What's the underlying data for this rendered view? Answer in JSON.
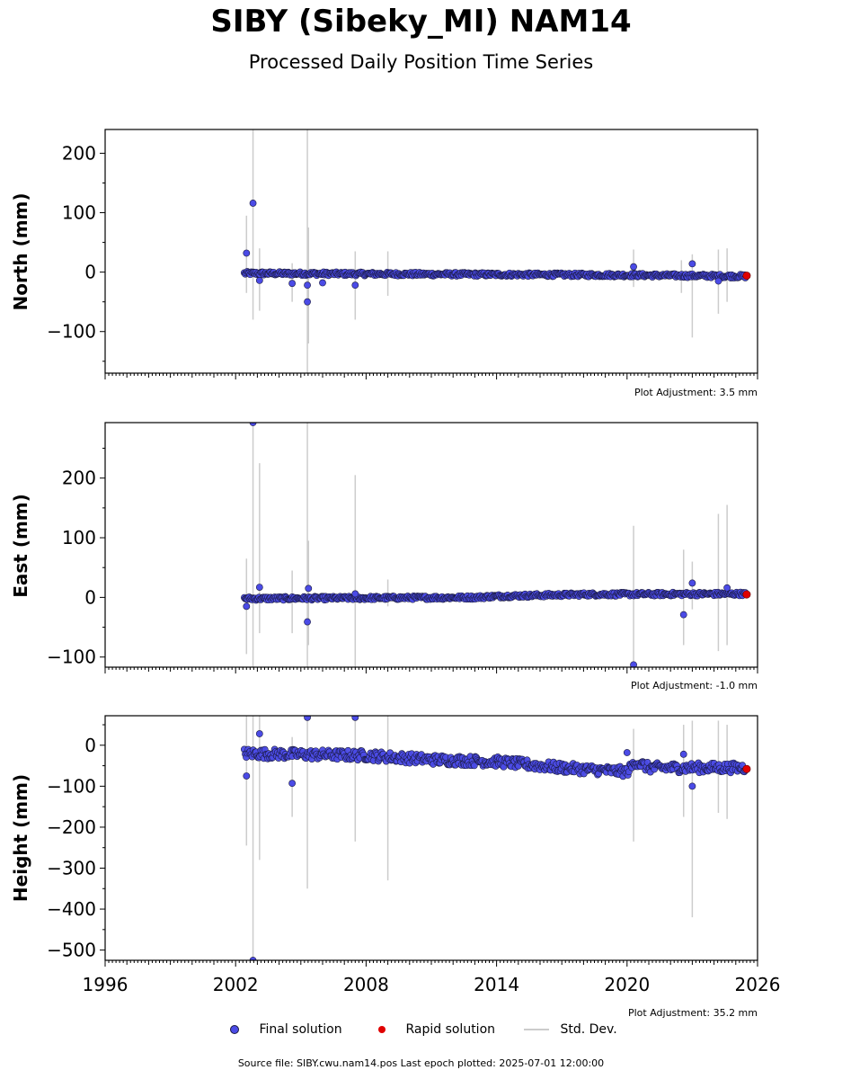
{
  "title": "SIBY (Sibeky_MI) NAM14",
  "subtitle": "Processed Daily Position Time Series",
  "footer": "Source file: SIBY.cwu.nam14.pos  Last epoch plotted: 2025-07-01 12:00:00",
  "legend": {
    "final": "Final solution",
    "rapid": "Rapid solution",
    "std": "Std. Dev."
  },
  "colors": {
    "final": "#4b4be6",
    "final_edge": "#1a1a40",
    "rapid": "#e00000",
    "std": "#cccccc"
  },
  "chart_data": [
    {
      "type": "scatter",
      "ylabel": "North (mm)",
      "ylim": [
        -170,
        240
      ],
      "yticks": [
        -100,
        0,
        100,
        200
      ],
      "xlim": [
        1996,
        2026
      ],
      "adjustment": "Plot Adjustment: 3.5 mm",
      "trend": [
        [
          2002.4,
          -2
        ],
        [
          2008,
          -3
        ],
        [
          2014,
          -4
        ],
        [
          2020,
          -5
        ],
        [
          2025.5,
          -7
        ]
      ],
      "scatter": 3,
      "outliers": [
        [
          2002.5,
          32
        ],
        [
          2002.8,
          116
        ],
        [
          2003.1,
          -14
        ],
        [
          2004.6,
          -19
        ],
        [
          2005.3,
          -22
        ],
        [
          2005.3,
          -50
        ],
        [
          2006.0,
          -18
        ],
        [
          2007.5,
          -22
        ],
        [
          2020.3,
          9
        ],
        [
          2023.0,
          14
        ],
        [
          2024.2,
          -15
        ]
      ],
      "errorbars": [
        [
          2002.5,
          -35,
          95
        ],
        [
          2002.8,
          -80,
          240
        ],
        [
          2003.1,
          -65,
          40
        ],
        [
          2004.6,
          -50,
          15
        ],
        [
          2005.3,
          -170,
          240
        ],
        [
          2005.35,
          -120,
          75
        ],
        [
          2007.5,
          -80,
          35
        ],
        [
          2009.0,
          -40,
          35
        ],
        [
          2020.3,
          -25,
          38
        ],
        [
          2022.5,
          -35,
          20
        ],
        [
          2023.0,
          -110,
          30
        ],
        [
          2024.2,
          -70,
          38
        ],
        [
          2024.6,
          -50,
          40
        ]
      ],
      "rapid": [
        [
          2025.5,
          -6
        ]
      ]
    },
    {
      "type": "scatter",
      "ylabel": "East (mm)",
      "ylim": [
        -117,
        293
      ],
      "yticks": [
        -100,
        0,
        100,
        200
      ],
      "xlim": [
        1996,
        2026
      ],
      "adjustment": "Plot Adjustment: -1.0 mm",
      "trend": [
        [
          2002.4,
          -2
        ],
        [
          2008,
          -1
        ],
        [
          2013,
          0
        ],
        [
          2014,
          2
        ],
        [
          2018,
          5
        ],
        [
          2025.5,
          6
        ]
      ],
      "scatter": 3,
      "outliers": [
        [
          2002.5,
          -15
        ],
        [
          2002.8,
          293
        ],
        [
          2003.1,
          17
        ],
        [
          2005.3,
          -41
        ],
        [
          2005.35,
          15
        ],
        [
          2007.5,
          6
        ],
        [
          2020.3,
          -113
        ],
        [
          2022.6,
          -29
        ],
        [
          2023.0,
          24
        ],
        [
          2024.6,
          16
        ]
      ],
      "errorbars": [
        [
          2002.5,
          -95,
          65
        ],
        [
          2002.8,
          -117,
          293
        ],
        [
          2003.1,
          -60,
          225
        ],
        [
          2004.6,
          -60,
          45
        ],
        [
          2005.3,
          -117,
          293
        ],
        [
          2005.35,
          -80,
          95
        ],
        [
          2007.5,
          -117,
          205
        ],
        [
          2009.0,
          -15,
          30
        ],
        [
          2020.3,
          -117,
          120
        ],
        [
          2022.6,
          -80,
          80
        ],
        [
          2023.0,
          -20,
          60
        ],
        [
          2024.2,
          -90,
          140
        ],
        [
          2024.6,
          -80,
          155
        ]
      ],
      "rapid": [
        [
          2025.5,
          5
        ]
      ]
    },
    {
      "type": "scatter",
      "ylabel": "Height (mm)",
      "ylim": [
        -525,
        72
      ],
      "yticks": [
        -500,
        -400,
        -300,
        -200,
        -100,
        0
      ],
      "xlim": [
        1996,
        2026
      ],
      "xticks": [
        1996,
        2002,
        2008,
        2014,
        2020,
        2026
      ],
      "adjustment": "Plot Adjustment: 35.2 mm",
      "trend": [
        [
          2002.4,
          -20
        ],
        [
          2008,
          -25
        ],
        [
          2011,
          -35
        ],
        [
          2014,
          -40
        ],
        [
          2017,
          -55
        ],
        [
          2020,
          -65
        ],
        [
          2020.4,
          -40
        ],
        [
          2021,
          -55
        ],
        [
          2025.5,
          -55
        ]
      ],
      "scatter": 12,
      "outliers": [
        [
          2002.5,
          -75
        ],
        [
          2002.8,
          -525
        ],
        [
          2003.1,
          28
        ],
        [
          2004.6,
          -93
        ],
        [
          2005.3,
          68
        ],
        [
          2007.5,
          68
        ],
        [
          2020.0,
          -18
        ],
        [
          2022.6,
          -22
        ],
        [
          2023.0,
          -100
        ]
      ],
      "errorbars": [
        [
          2002.5,
          -245,
          72
        ],
        [
          2002.8,
          -525,
          72
        ],
        [
          2003.1,
          -280,
          72
        ],
        [
          2004.6,
          -175,
          20
        ],
        [
          2005.3,
          -350,
          72
        ],
        [
          2007.5,
          -235,
          72
        ],
        [
          2009.0,
          -330,
          72
        ],
        [
          2020.3,
          -235,
          40
        ],
        [
          2022.6,
          -175,
          50
        ],
        [
          2023.0,
          -420,
          60
        ],
        [
          2024.2,
          -165,
          60
        ],
        [
          2024.6,
          -180,
          50
        ]
      ],
      "rapid": [
        [
          2025.5,
          -58
        ]
      ]
    }
  ]
}
